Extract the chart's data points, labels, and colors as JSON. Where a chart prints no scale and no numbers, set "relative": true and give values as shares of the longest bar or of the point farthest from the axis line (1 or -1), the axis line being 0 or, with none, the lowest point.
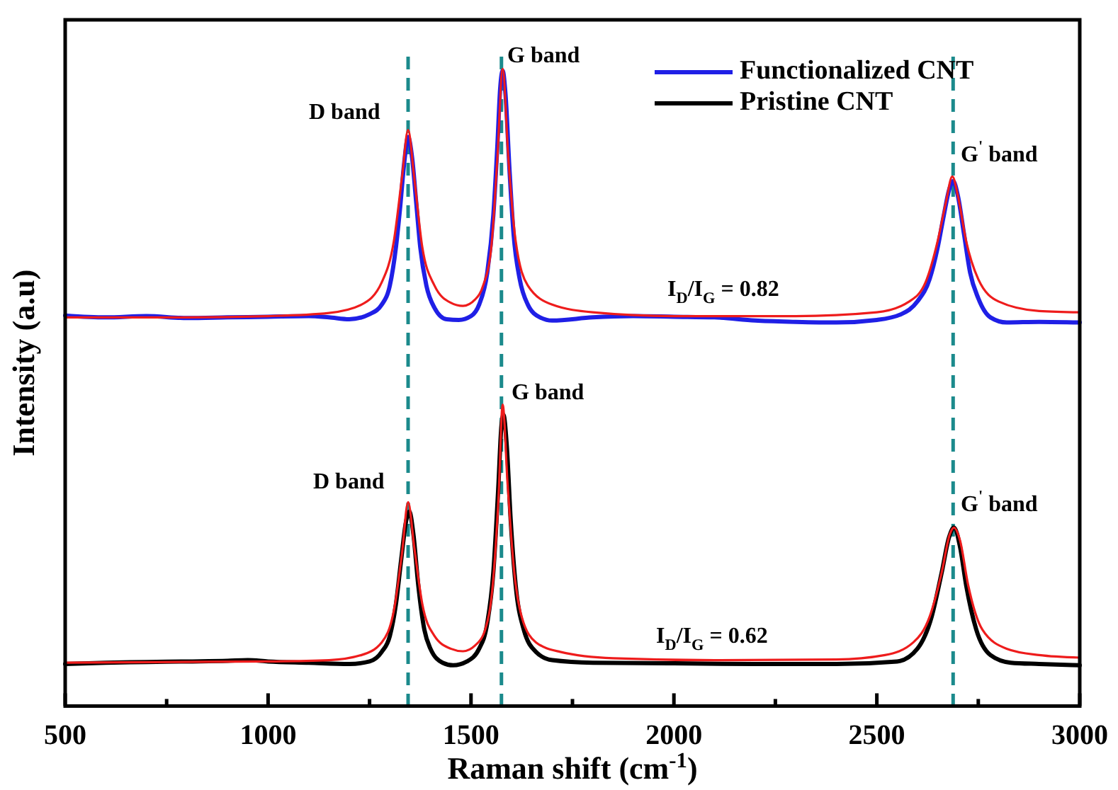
{
  "chart_data": {
    "type": "line",
    "relative": true,
    "xlabel": "Raman shift (cm$^{-1}$)",
    "ylabel": "Intensity (a.u)",
    "xlim": [
      500,
      3000
    ],
    "xticks": [
      500,
      {
        "value": 750,
        "label": null
      },
      1000,
      {
        "value": 1250,
        "label": null
      },
      1500,
      {
        "value": 1750,
        "label": null
      },
      2000,
      {
        "value": 2250,
        "label": null
      },
      2500,
      {
        "value": 2750,
        "label": null
      },
      3000
    ],
    "legend": "top right",
    "grid": false,
    "line_style": "solid",
    "ref_lines": [
      {
        "axis": "x",
        "value": 1345,
        "color": "#1b8a8c",
        "line_style": "dashed"
      },
      {
        "axis": "x",
        "value": 1575,
        "color": "#1b8a8c",
        "line_style": "dashed"
      },
      {
        "axis": "x",
        "value": 2688,
        "color": "#1b8a8c",
        "line_style": "dashed"
      }
    ],
    "annotations": [
      "D band",
      "G band",
      "G$^{'}$ band",
      "I$_{D}$/I$_{G}$ = 0.82",
      "D band",
      "G band",
      "G$^{'}$ band",
      "I$_{D}$/I$_{G}$ = 0.62"
    ],
    "series": [
      {
        "name": "Functionalized CNT",
        "color": "#1f1fe6",
        "x": [
          500,
          600,
          700,
          800,
          900,
          1000,
          1100,
          1150,
          1200,
          1250,
          1280,
          1300,
          1315,
          1325,
          1335,
          1345,
          1355,
          1365,
          1375,
          1390,
          1410,
          1440,
          1470,
          1500,
          1520,
          1540,
          1555,
          1565,
          1572,
          1578,
          1585,
          1595,
          1605,
          1620,
          1640,
          1670,
          1700,
          1800,
          1900,
          2000,
          2100,
          2200,
          2300,
          2400,
          2500,
          2560,
          2600,
          2630,
          2650,
          2665,
          2678,
          2688,
          2700,
          2715,
          2730,
          2750,
          2780,
          2820,
          2900,
          3000
        ],
        "values": [
          0.613,
          0.61,
          0.612,
          0.609,
          0.61,
          0.611,
          0.612,
          0.61,
          0.607,
          0.615,
          0.63,
          0.66,
          0.72,
          0.78,
          0.85,
          0.893,
          0.86,
          0.79,
          0.72,
          0.66,
          0.625,
          0.607,
          0.606,
          0.612,
          0.63,
          0.68,
          0.77,
          0.88,
          0.97,
          0.997,
          0.96,
          0.84,
          0.74,
          0.67,
          0.63,
          0.61,
          0.605,
          0.61,
          0.612,
          0.611,
          0.61,
          0.605,
          0.603,
          0.602,
          0.606,
          0.615,
          0.635,
          0.67,
          0.72,
          0.77,
          0.81,
          0.824,
          0.8,
          0.74,
          0.68,
          0.64,
          0.61,
          0.602,
          0.603,
          0.602
        ]
      },
      {
        "color": "#ee1c1c",
        "x": [
          500,
          800,
          1000,
          1150,
          1230,
          1280,
          1310,
          1330,
          1345,
          1360,
          1380,
          1410,
          1450,
          1480,
          1510,
          1530,
          1550,
          1565,
          1578,
          1592,
          1610,
          1640,
          1700,
          1800,
          2000,
          2300,
          2500,
          2580,
          2620,
          2650,
          2670,
          2686,
          2700,
          2720,
          2750,
          2800,
          2900,
          3000
        ],
        "values": [
          0.61,
          0.61,
          0.612,
          0.617,
          0.63,
          0.665,
          0.73,
          0.83,
          0.904,
          0.83,
          0.72,
          0.66,
          0.633,
          0.628,
          0.638,
          0.66,
          0.72,
          0.86,
          1.0,
          0.86,
          0.73,
          0.66,
          0.63,
          0.618,
          0.612,
          0.612,
          0.618,
          0.635,
          0.665,
          0.73,
          0.79,
          0.831,
          0.8,
          0.73,
          0.67,
          0.635,
          0.62,
          0.618
        ]
      },
      {
        "name": "Pristine CNT",
        "color": "#000000",
        "x": [
          500,
          600,
          700,
          800,
          900,
          950,
          1000,
          1100,
          1200,
          1250,
          1280,
          1300,
          1315,
          1328,
          1340,
          1348,
          1358,
          1370,
          1385,
          1400,
          1430,
          1456,
          1490,
          1520,
          1540,
          1555,
          1567,
          1575,
          1580,
          1588,
          1598,
          1610,
          1630,
          1660,
          1700,
          1800,
          2000,
          2200,
          2400,
          2550,
          2600,
          2635,
          2660,
          2678,
          2690,
          2705,
          2720,
          2745,
          2780,
          2830,
          2900,
          3000
        ],
        "values": [
          0.066,
          0.068,
          0.069,
          0.07,
          0.071,
          0.072,
          0.07,
          0.068,
          0.066,
          0.07,
          0.085,
          0.11,
          0.16,
          0.23,
          0.29,
          0.305,
          0.27,
          0.19,
          0.12,
          0.09,
          0.068,
          0.064,
          0.07,
          0.09,
          0.13,
          0.21,
          0.34,
          0.44,
          0.457,
          0.41,
          0.29,
          0.19,
          0.12,
          0.085,
          0.072,
          0.068,
          0.067,
          0.066,
          0.066,
          0.07,
          0.09,
          0.14,
          0.21,
          0.265,
          0.28,
          0.25,
          0.19,
          0.12,
          0.08,
          0.068,
          0.066,
          0.064
        ]
      },
      {
        "color": "#ee1c1c",
        "x": [
          500,
          1000,
          1150,
          1230,
          1280,
          1310,
          1330,
          1345,
          1360,
          1380,
          1410,
          1450,
          1480,
          1510,
          1535,
          1555,
          1568,
          1578,
          1590,
          1605,
          1625,
          1660,
          1720,
          1850,
          2100,
          2400,
          2520,
          2590,
          2630,
          2660,
          2680,
          2690,
          2705,
          2725,
          2760,
          2820,
          2900,
          3000
        ],
        "values": [
          0.068,
          0.07,
          0.072,
          0.08,
          0.1,
          0.15,
          0.24,
          0.32,
          0.25,
          0.16,
          0.11,
          0.09,
          0.086,
          0.095,
          0.12,
          0.2,
          0.33,
          0.473,
          0.35,
          0.22,
          0.14,
          0.1,
          0.085,
          0.075,
          0.072,
          0.073,
          0.08,
          0.1,
          0.14,
          0.21,
          0.27,
          0.28,
          0.26,
          0.19,
          0.12,
          0.09,
          0.08,
          0.076
        ]
      }
    ]
  }
}
